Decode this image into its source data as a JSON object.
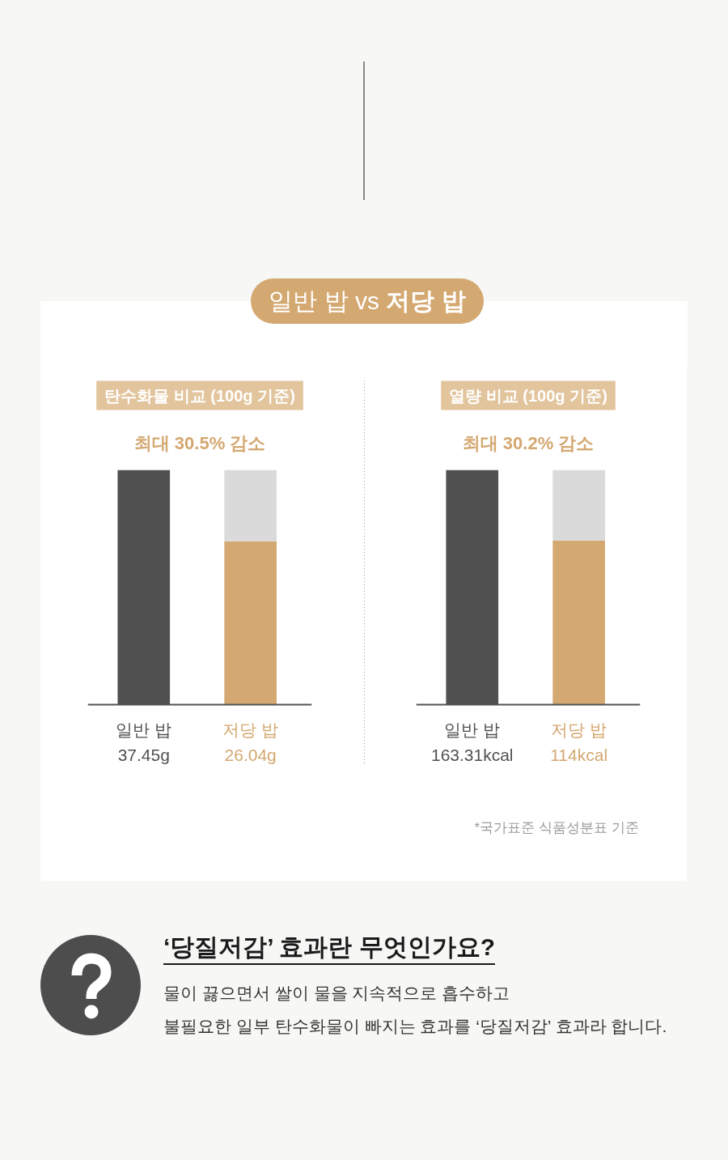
{
  "chart_data": [
    {
      "type": "other",
      "title": "일반 밥 vs 저당 밥"
    },
    {
      "type": "bar",
      "title": "탄수화물 비교 (100g 기준)",
      "subtitle": "최대 30.5% 감소",
      "categories": [
        "일반 밥",
        "저당 밥"
      ],
      "stacked": true,
      "series": [
        {
          "colors": [
            "#505050",
            "#d4a871"
          ],
          "values": [
            37.45,
            26.04
          ],
          "value_labels": [
            "37.45g",
            "26.04g"
          ]
        },
        {
          "color": "#dadada",
          "values": [
            null,
            11.41
          ]
        }
      ]
    },
    {
      "type": "bar",
      "title": "열량 비교 (100g 기준)",
      "subtitle": "최대 30.2% 감소",
      "categories": [
        "일반 밥",
        "저당 밥"
      ],
      "stacked": true,
      "series": [
        {
          "colors": [
            "#505050",
            "#d4a871"
          ],
          "values": [
            163.31,
            114
          ],
          "value_labels": [
            "163.31kcal",
            "114kcal"
          ]
        },
        {
          "color": "#dadada",
          "values": [
            null,
            49.31
          ]
        }
      ],
      "annotations": [
        "*국가표준 식품성분표 기준"
      ]
    },
    {
      "type": "other",
      "title": "‘당질저감’ 효과란 무엇인가요?",
      "annotations": [
        "물이 끓으면서 쌀이 물을 지속적으로 흡수하고",
        "불필요한 일부 탄수화물이 빠지는 효과를 ‘당질저감’ 효과라 합니다."
      ]
    }
  ]
}
